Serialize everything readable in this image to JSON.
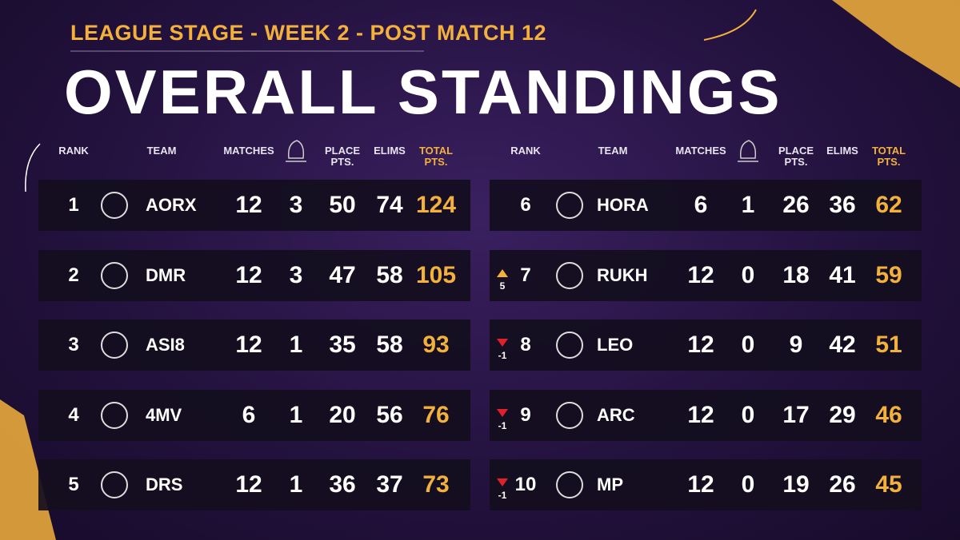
{
  "header": {
    "subtitle": "LEAGUE STAGE - WEEK 2 - POST MATCH 12",
    "title": "OVERALL STANDINGS"
  },
  "columns": [
    "RANK",
    "TEAM",
    "MATCHES",
    "PLACE PTS.",
    "ELIMS",
    "TOTAL PTS."
  ],
  "rows": [
    {
      "rank": 1,
      "team": "AORX",
      "matches": 12,
      "wins": 3,
      "place_pts": 50,
      "elims": 74,
      "total_pts": 124
    },
    {
      "rank": 2,
      "team": "DMR",
      "matches": 12,
      "wins": 3,
      "place_pts": 47,
      "elims": 58,
      "total_pts": 105
    },
    {
      "rank": 3,
      "team": "ASI8",
      "matches": 12,
      "wins": 1,
      "place_pts": 35,
      "elims": 58,
      "total_pts": 93
    },
    {
      "rank": 4,
      "team": "4MV",
      "matches": 6,
      "wins": 1,
      "place_pts": 20,
      "elims": 56,
      "total_pts": 76
    },
    {
      "rank": 5,
      "team": "DRS",
      "matches": 12,
      "wins": 1,
      "place_pts": 36,
      "elims": 37,
      "total_pts": 73
    },
    {
      "rank": 6,
      "team": "HORA",
      "matches": 6,
      "wins": 1,
      "place_pts": 26,
      "elims": 36,
      "total_pts": 62
    },
    {
      "rank": 7,
      "team": "RUKH",
      "matches": 12,
      "wins": 0,
      "place_pts": 18,
      "elims": 41,
      "total_pts": 59,
      "change": "5"
    },
    {
      "rank": 8,
      "team": "LEO",
      "matches": 12,
      "wins": 0,
      "place_pts": 9,
      "elims": 42,
      "total_pts": 51,
      "change": "-1"
    },
    {
      "rank": 9,
      "team": "ARC",
      "matches": 12,
      "wins": 0,
      "place_pts": 17,
      "elims": 29,
      "total_pts": 46,
      "change": "-1"
    },
    {
      "rank": 10,
      "team": "MP",
      "matches": 12,
      "wins": 0,
      "place_pts": 19,
      "elims": 26,
      "total_pts": 45,
      "change": "-1"
    }
  ]
}
